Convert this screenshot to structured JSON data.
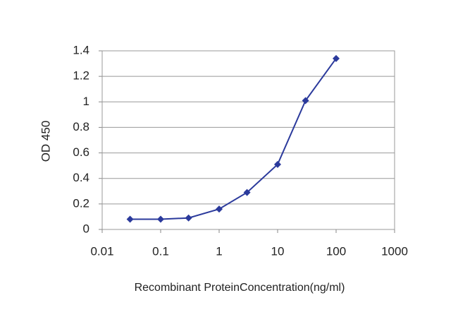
{
  "chart_data": {
    "type": "line",
    "xlabel": "Recombinant ProteinConcentration(ng/ml)",
    "ylabel": "OD 450",
    "x": [
      0.03,
      0.1,
      0.3,
      1,
      3,
      10,
      30,
      100
    ],
    "series": [
      {
        "color": "#2b3a9c",
        "values": [
          0.08,
          0.08,
          0.09,
          0.16,
          0.29,
          0.51,
          1.01,
          1.34
        ]
      }
    ],
    "xscale": "log",
    "xlim": [
      0.01,
      1000
    ],
    "xticks": [
      0.01,
      0.1,
      1,
      10,
      100,
      1000
    ],
    "ylim": [
      0,
      1.4
    ],
    "yticks": [
      0,
      0.2,
      0.4,
      0.6,
      0.8,
      1,
      1.2,
      1.4
    ],
    "grid": true
  }
}
